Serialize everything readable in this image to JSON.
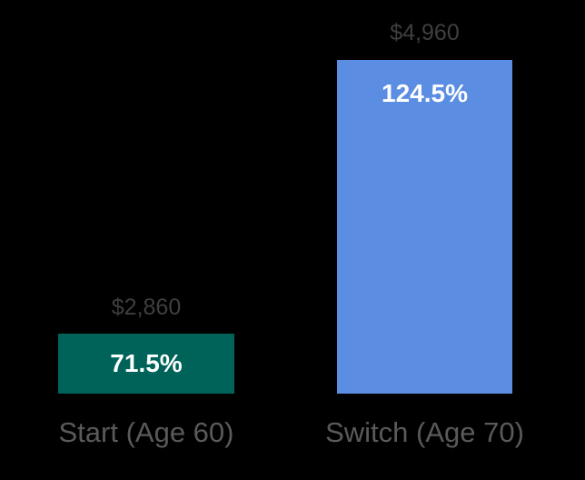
{
  "chart_data": {
    "type": "bar",
    "categories": [
      "Start (Age 60)",
      "Switch (Age 70)"
    ],
    "series": [
      {
        "name": "benefit-amount",
        "values": [
          2860,
          4960
        ]
      }
    ],
    "value_labels": [
      "$2,860",
      "$4,960"
    ],
    "inside_bar_labels": [
      "71.5%",
      "124.5%"
    ],
    "bar_colors": [
      "#00635A",
      "#5B8DE2"
    ],
    "value_label_color": "#3F3F3F",
    "category_label_color": "#5A5A5A",
    "inside_label_color": "#FFFFFF",
    "background": "#000000",
    "title": "",
    "xlabel": "",
    "ylabel": "",
    "grid": false,
    "legend": "none",
    "axes": "hidden"
  }
}
